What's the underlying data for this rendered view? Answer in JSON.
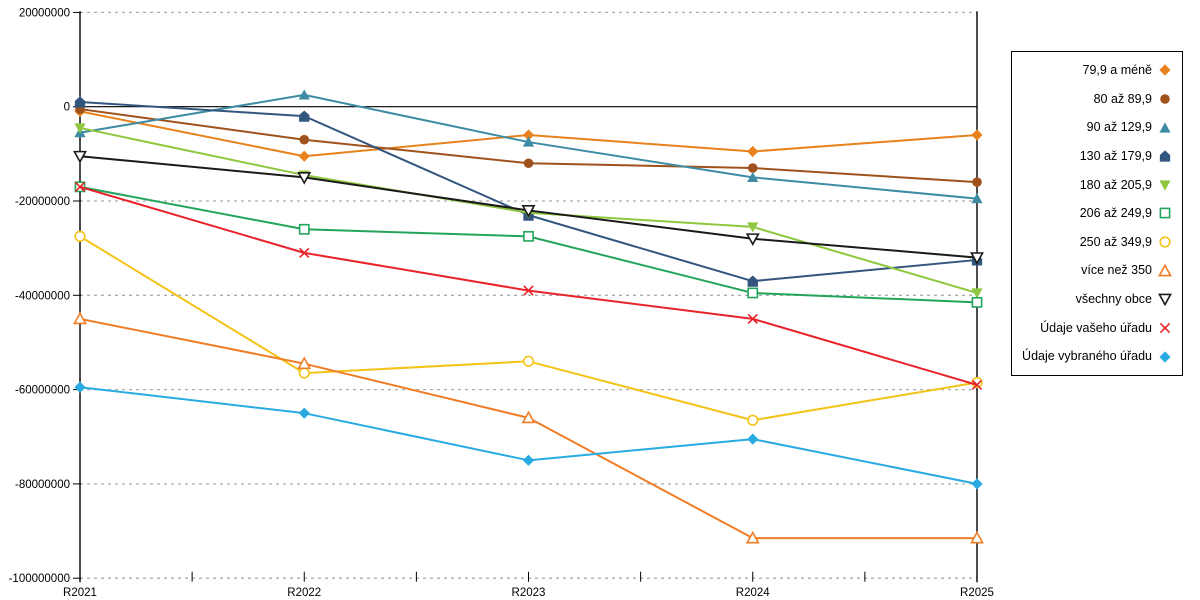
{
  "chart_data": {
    "type": "line",
    "categories": [
      "R2021",
      "R2022",
      "R2023",
      "R2024",
      "R2025"
    ],
    "y_axis": {
      "min": -100000000,
      "max": 20000000,
      "tick_step": 20000000,
      "tick_values": [
        20000000,
        0,
        -20000000,
        -40000000,
        -60000000,
        -80000000,
        -100000000
      ],
      "tick_labels": [
        "20000000",
        "0",
        "-20000000",
        "-40000000",
        "-60000000",
        "-80000000",
        "-100000000"
      ]
    },
    "grid": {
      "horizontal": "dashed",
      "color": "#ababab",
      "zero_line_color": "#000000"
    },
    "legend_position": "right",
    "series": [
      {
        "name": "79,9 a méně",
        "marker": "diamond",
        "filled": true,
        "color": "#E8821E",
        "values": [
          -1000000,
          -10500000,
          -6000000,
          -9500000,
          -6000000
        ]
      },
      {
        "name": "80 až 89,9",
        "marker": "circle",
        "filled": true,
        "color": "#A0521C",
        "values": [
          -500000,
          -7000000,
          -12000000,
          -13000000,
          -16000000
        ]
      },
      {
        "name": "90 až 129,9",
        "marker": "triangle-up",
        "filled": true,
        "color": "#3E8CA3",
        "values": [
          -5500000,
          2500000,
          -7500000,
          -15000000,
          -19500000
        ]
      },
      {
        "name": "130 až 179,9",
        "marker": "pentagon",
        "filled": true,
        "color": "#33567F",
        "values": [
          1000000,
          -2000000,
          -23000000,
          -37000000,
          -32500000
        ]
      },
      {
        "name": "180 až 205,9",
        "marker": "triangle-down",
        "filled": true,
        "color": "#8FC73E",
        "values": [
          -4500000,
          -14500000,
          -22500000,
          -25500000,
          -39500000
        ]
      },
      {
        "name": "206 až 249,9",
        "marker": "square",
        "filled": false,
        "color": "#23A45C",
        "values": [
          -17000000,
          -26000000,
          -27500000,
          -39500000,
          -41500000
        ]
      },
      {
        "name": "250 až 349,9",
        "marker": "circle",
        "filled": false,
        "color": "#F4C318",
        "values": [
          -27500000,
          -56500000,
          -54000000,
          -66500000,
          -58500000
        ]
      },
      {
        "name": "více než 350",
        "marker": "triangle-up",
        "filled": false,
        "color": "#F07D26",
        "values": [
          -45000000,
          -54500000,
          -66000000,
          -91500000,
          -91500000
        ]
      },
      {
        "name": "všechny obce",
        "marker": "triangle-down",
        "filled": false,
        "color": "#1A1A1A",
        "values": [
          -10500000,
          -15000000,
          -22000000,
          -28000000,
          -32000000
        ]
      },
      {
        "name": "Údaje vašeho úřadu",
        "marker": "x",
        "filled": false,
        "color": "#E8232A",
        "values": [
          -17000000,
          -31000000,
          -39000000,
          -45000000,
          -59000000
        ]
      },
      {
        "name": "Údaje vybraného úřadu",
        "marker": "diamond",
        "filled": true,
        "color": "#29ABE2",
        "values": [
          -59500000,
          -65000000,
          -75000000,
          -70500000,
          -80000000
        ]
      }
    ]
  }
}
